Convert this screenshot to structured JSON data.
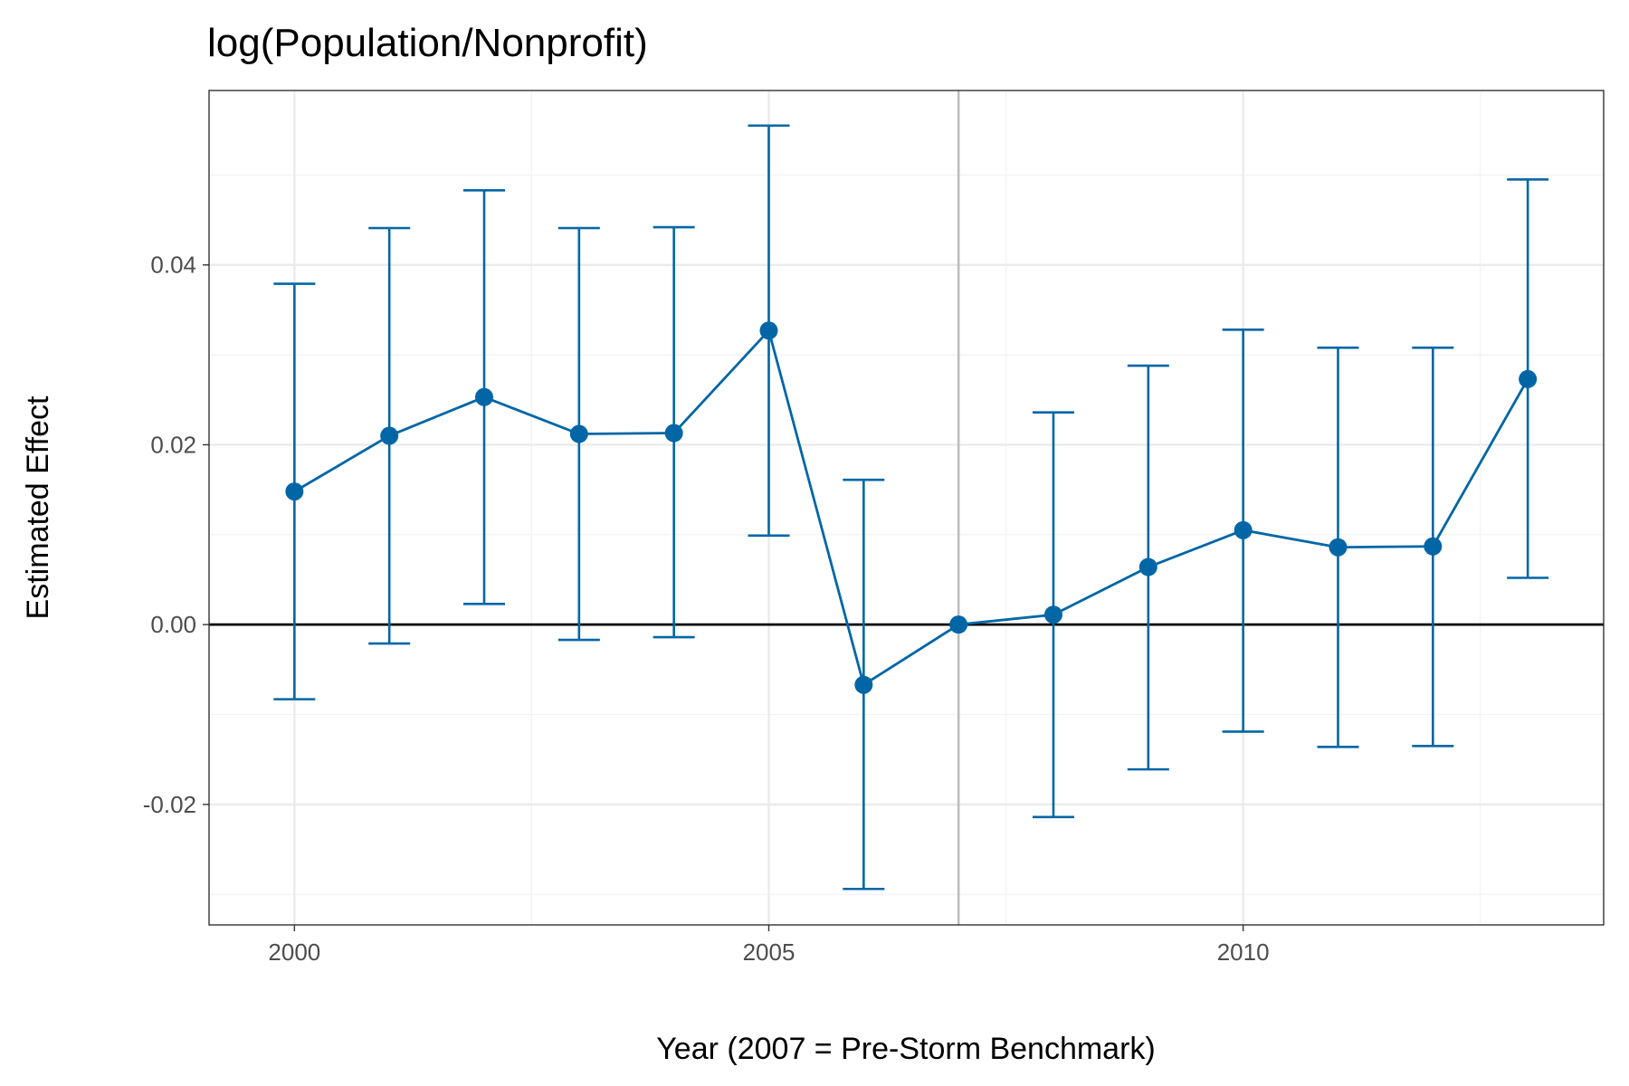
{
  "chart_data": {
    "type": "line",
    "title": "log(Population/Nonprofit)",
    "xlabel": "Year (2007 = Pre-Storm Benchmark)",
    "ylabel": "Estimated Effect",
    "x_ticks": [
      2000,
      2005,
      2010
    ],
    "x_tick_labels": [
      "2000",
      "2005",
      "2010"
    ],
    "y_ticks": [
      -0.02,
      0.0,
      0.02,
      0.04
    ],
    "y_tick_labels": [
      "-0.02",
      "0.00",
      "0.02",
      "0.04"
    ],
    "xlim": [
      1999.1,
      2013.8
    ],
    "ylim": [
      -0.0334,
      0.0594
    ],
    "grid": true,
    "reference_lines": {
      "horizontal_y": 0,
      "vertical_x": 2007
    },
    "color": "#0066a6",
    "series": [
      {
        "x": [
          2000,
          2001,
          2002,
          2003,
          2004,
          2005,
          2006,
          2007,
          2008,
          2009,
          2010,
          2011,
          2012,
          2013
        ],
        "y": [
          0.0148,
          0.021,
          0.0253,
          0.0212,
          0.0213,
          0.0327,
          -0.0067,
          0.0,
          0.0011,
          0.0064,
          0.0105,
          0.0086,
          0.0087,
          0.0273
        ],
        "lower": [
          -0.0083,
          -0.0021,
          0.0023,
          -0.0017,
          -0.0014,
          0.0099,
          -0.0294,
          null,
          -0.0214,
          -0.0161,
          -0.0119,
          -0.0136,
          -0.0135,
          0.0052
        ],
        "upper": [
          0.0379,
          0.0441,
          0.0483,
          0.0441,
          0.0442,
          0.0555,
          0.0161,
          null,
          0.0236,
          0.0288,
          0.0328,
          0.0308,
          0.0308,
          0.0495
        ]
      }
    ]
  }
}
